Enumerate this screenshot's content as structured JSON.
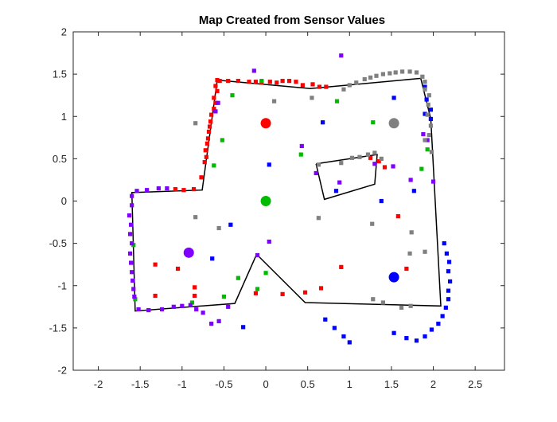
{
  "chart_data": {
    "type": "scatter",
    "title": "Map Created from Sensor Values",
    "xlabel": "",
    "ylabel": "",
    "xlim": [
      -2.3,
      2.85
    ],
    "ylim": [
      -2,
      2
    ],
    "xticks": [
      -2,
      -1.5,
      -1,
      -0.5,
      0,
      0.5,
      1,
      1.5,
      2,
      2.5
    ],
    "xtick_labels": [
      "-2",
      "-1.5",
      "-1",
      "-0.5",
      "0",
      "0.5",
      "1",
      "1.5",
      "2",
      "2.5"
    ],
    "yticks": [
      2,
      1.5,
      1,
      0.5,
      0,
      -0.5,
      -1,
      -1.5,
      -2
    ],
    "ytick_labels": [
      "2",
      "1.5",
      "1",
      "0.5",
      "0",
      "-0.5",
      "-1",
      "-1.5",
      "-2"
    ],
    "grid": false,
    "legend": "none",
    "colors": {
      "red": "#ff0000",
      "green": "#00bb00",
      "blue": "#0000ff",
      "gray": "#808080",
      "purple": "#8000ff",
      "walls": "#000000"
    },
    "walls": [
      {
        "name": "outer",
        "closed": true,
        "points": [
          [
            -0.58,
            1.43
          ],
          [
            0.53,
            1.33
          ],
          [
            1.85,
            1.45
          ],
          [
            1.97,
            0.97
          ],
          [
            2.09,
            -1.24
          ],
          [
            0.47,
            -1.2
          ],
          [
            -0.11,
            -0.63
          ],
          [
            -0.37,
            -1.21
          ],
          [
            -1.56,
            -1.3
          ],
          [
            -1.6,
            0.1
          ],
          [
            -0.76,
            0.13
          ],
          [
            -0.58,
            1.43
          ]
        ]
      },
      {
        "name": "inner",
        "closed": true,
        "points": [
          [
            0.6,
            0.44
          ],
          [
            1.33,
            0.55
          ],
          [
            1.3,
            0.2
          ],
          [
            0.7,
            0.02
          ],
          [
            0.6,
            0.44
          ]
        ]
      }
    ],
    "robots": [
      {
        "x": 0,
        "y": 0.92,
        "color": "red"
      },
      {
        "x": 0,
        "y": 0,
        "color": "green"
      },
      {
        "x": 1.53,
        "y": 0.92,
        "color": "gray"
      },
      {
        "x": -0.92,
        "y": -0.61,
        "color": "purple"
      },
      {
        "x": 1.53,
        "y": -0.9,
        "color": "blue"
      }
    ],
    "series": [
      {
        "color": "red",
        "points": [
          [
            -0.58,
            1.43
          ],
          [
            -0.55,
            1.42
          ],
          [
            -0.6,
            1.36
          ],
          [
            -0.58,
            1.3
          ],
          [
            -0.62,
            1.22
          ],
          [
            -0.6,
            1.16
          ],
          [
            -0.62,
            1.09
          ],
          [
            -0.65,
            1.02
          ],
          [
            -0.66,
            0.94
          ],
          [
            -0.67,
            0.88
          ],
          [
            -0.68,
            0.82
          ],
          [
            -0.69,
            0.74
          ],
          [
            -0.7,
            0.68
          ],
          [
            -0.72,
            0.6
          ],
          [
            -0.71,
            0.52
          ],
          [
            -0.73,
            0.46
          ],
          [
            -0.77,
            0.28
          ],
          [
            -0.86,
            0.14
          ],
          [
            -0.98,
            0.13
          ],
          [
            -1.08,
            0.14
          ],
          [
            -0.45,
            1.42
          ],
          [
            -0.33,
            1.42
          ],
          [
            -0.2,
            1.41
          ],
          [
            -0.12,
            1.41
          ],
          [
            -0.05,
            1.4
          ],
          [
            0.05,
            1.41
          ],
          [
            0.13,
            1.4
          ],
          [
            0.2,
            1.42
          ],
          [
            0.28,
            1.42
          ],
          [
            0.36,
            1.41
          ],
          [
            0.44,
            1.37
          ],
          [
            0.56,
            1.38
          ],
          [
            0.64,
            1.35
          ],
          [
            0.72,
            1.35
          ],
          [
            -1.32,
            -0.75
          ],
          [
            -1.05,
            -0.8
          ],
          [
            -0.85,
            -1.02
          ],
          [
            -0.85,
            -1.12
          ],
          [
            -0.12,
            -1.09
          ],
          [
            0.2,
            -1.1
          ],
          [
            0.47,
            -1.08
          ],
          [
            0.66,
            -1.03
          ],
          [
            0.9,
            -0.78
          ],
          [
            1.25,
            0.51
          ],
          [
            1.35,
            0.47
          ],
          [
            1.42,
            0.4
          ],
          [
            1.58,
            -0.18
          ],
          [
            1.68,
            -0.8
          ],
          [
            -1.32,
            -1.12
          ]
        ]
      },
      {
        "color": "green",
        "points": [
          [
            -0.05,
            1.42
          ],
          [
            -0.4,
            1.25
          ],
          [
            -0.52,
            0.72
          ],
          [
            -0.62,
            0.42
          ],
          [
            0.85,
            1.18
          ],
          [
            1.28,
            0.93
          ],
          [
            0.42,
            0.55
          ],
          [
            -0.33,
            -0.91
          ],
          [
            -0.5,
            -1.13
          ],
          [
            -0.88,
            -1.2
          ],
          [
            -1.58,
            -0.52
          ],
          [
            -1.56,
            -1.16
          ],
          [
            0.0,
            -0.85
          ],
          [
            -0.1,
            -1.04
          ],
          [
            1.93,
            0.61
          ],
          [
            1.86,
            0.38
          ]
        ]
      },
      {
        "color": "blue",
        "points": [
          [
            0.68,
            0.93
          ],
          [
            1.53,
            1.22
          ],
          [
            0.04,
            0.43
          ],
          [
            0.84,
            0.12
          ],
          [
            1.38,
            0.0
          ],
          [
            1.77,
            0.12
          ],
          [
            -0.42,
            -0.28
          ],
          [
            -0.64,
            -0.68
          ],
          [
            -0.27,
            -1.49
          ],
          [
            0.71,
            -1.4
          ],
          [
            0.82,
            -1.5
          ],
          [
            0.93,
            -1.6
          ],
          [
            1.0,
            -1.67
          ],
          [
            1.53,
            -1.56
          ],
          [
            1.68,
            -1.62
          ],
          [
            1.8,
            -1.65
          ],
          [
            1.9,
            -1.6
          ],
          [
            1.98,
            -1.52
          ],
          [
            2.06,
            -1.45
          ],
          [
            2.11,
            -1.36
          ],
          [
            2.15,
            -1.26
          ],
          [
            2.18,
            -1.16
          ],
          [
            2.18,
            -1.06
          ],
          [
            2.2,
            -0.95
          ],
          [
            2.18,
            -0.83
          ],
          [
            2.19,
            -0.72
          ],
          [
            2.16,
            -0.62
          ],
          [
            2.13,
            -0.5
          ],
          [
            1.9,
            1.35
          ],
          [
            1.92,
            1.2
          ],
          [
            1.97,
            1.08
          ],
          [
            1.97,
            0.97
          ],
          [
            1.9,
            1.03
          ]
        ]
      },
      {
        "color": "purple",
        "points": [
          [
            -0.14,
            1.54
          ],
          [
            0.9,
            1.72
          ],
          [
            0.43,
            0.65
          ],
          [
            0.6,
            0.33
          ],
          [
            0.88,
            0.22
          ],
          [
            -0.1,
            -0.64
          ],
          [
            0.04,
            -0.48
          ],
          [
            -1.6,
            0.06
          ],
          [
            -1.6,
            -0.05
          ],
          [
            -1.63,
            -0.17
          ],
          [
            -1.61,
            -0.28
          ],
          [
            -1.62,
            -0.39
          ],
          [
            -1.6,
            -0.5
          ],
          [
            -1.62,
            -0.62
          ],
          [
            -1.61,
            -0.73
          ],
          [
            -1.6,
            -0.84
          ],
          [
            -1.59,
            -0.94
          ],
          [
            -1.58,
            -1.04
          ],
          [
            -1.57,
            -1.13
          ],
          [
            -1.52,
            -1.28
          ],
          [
            -1.4,
            -1.29
          ],
          [
            -1.24,
            -1.28
          ],
          [
            -1.1,
            -1.25
          ],
          [
            -1.0,
            -1.24
          ],
          [
            -0.9,
            -1.23
          ],
          [
            -0.83,
            -1.28
          ],
          [
            -0.75,
            -1.32
          ],
          [
            -0.65,
            -1.45
          ],
          [
            -0.56,
            -1.42
          ],
          [
            -0.45,
            -1.25
          ],
          [
            -0.57,
            1.16
          ],
          [
            -0.6,
            1.06
          ],
          [
            -1.18,
            0.15
          ],
          [
            -1.28,
            0.15
          ],
          [
            -1.42,
            0.13
          ],
          [
            -1.54,
            0.12
          ],
          [
            1.3,
            0.44
          ],
          [
            1.52,
            0.41
          ],
          [
            1.73,
            0.25
          ],
          [
            2.0,
            0.23
          ],
          [
            1.93,
            0.72
          ],
          [
            1.88,
            0.79
          ]
        ]
      },
      {
        "color": "gray",
        "points": [
          [
            -0.84,
            0.92
          ],
          [
            0.1,
            1.18
          ],
          [
            0.55,
            1.22
          ],
          [
            0.93,
            1.32
          ],
          [
            1.0,
            1.37
          ],
          [
            1.08,
            1.4
          ],
          [
            1.18,
            1.44
          ],
          [
            1.25,
            1.46
          ],
          [
            1.32,
            1.48
          ],
          [
            1.4,
            1.5
          ],
          [
            1.48,
            1.51
          ],
          [
            1.55,
            1.52
          ],
          [
            1.63,
            1.53
          ],
          [
            1.72,
            1.53
          ],
          [
            1.8,
            1.52
          ],
          [
            1.87,
            1.47
          ],
          [
            1.9,
            1.41
          ],
          [
            1.9,
            1.32
          ],
          [
            1.95,
            1.25
          ],
          [
            1.94,
            1.14
          ],
          [
            1.93,
            1.02
          ],
          [
            1.97,
            0.89
          ],
          [
            1.95,
            0.78
          ],
          [
            1.9,
            0.72
          ],
          [
            1.98,
            0.58
          ],
          [
            0.63,
            0.43
          ],
          [
            0.9,
            0.45
          ],
          [
            1.03,
            0.51
          ],
          [
            1.12,
            0.52
          ],
          [
            1.22,
            0.55
          ],
          [
            1.3,
            0.57
          ],
          [
            1.38,
            0.5
          ],
          [
            -0.84,
            -0.19
          ],
          [
            -0.56,
            -0.32
          ],
          [
            0.63,
            -0.2
          ],
          [
            1.27,
            -0.27
          ],
          [
            1.74,
            -0.37
          ],
          [
            1.9,
            -0.6
          ],
          [
            1.72,
            -0.62
          ],
          [
            1.28,
            -1.16
          ],
          [
            1.4,
            -1.2
          ],
          [
            1.73,
            -1.24
          ],
          [
            1.62,
            -1.26
          ]
        ]
      }
    ]
  }
}
